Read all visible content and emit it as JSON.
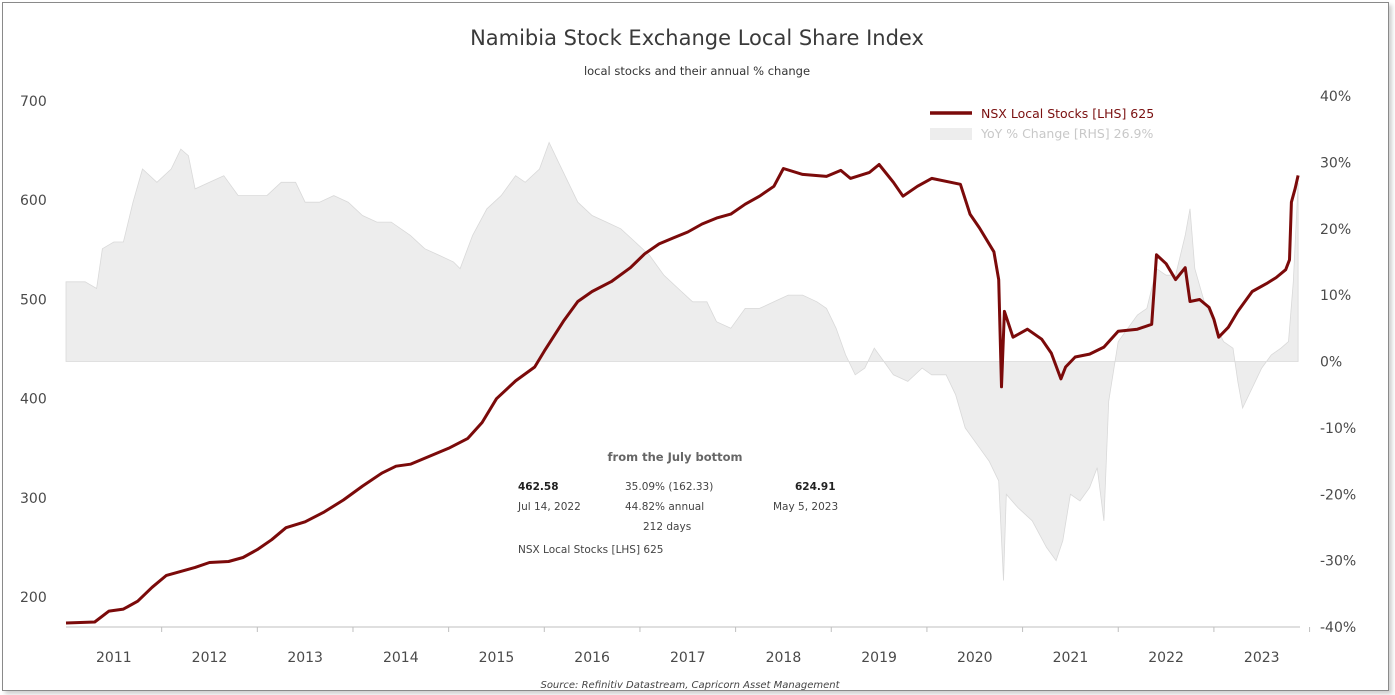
{
  "chart_data": {
    "type": "line",
    "title": "Namibia Stock Exchange Local Share Index",
    "subtitle": "local stocks and their annual % change",
    "source": "Source: Refinitiv Datastream, Capricorn Asset Management",
    "x_labels": [
      "2011",
      "2012",
      "2013",
      "2014",
      "2015",
      "2016",
      "2017",
      "2018",
      "2019",
      "2020",
      "2021",
      "2022",
      "2023"
    ],
    "x_range": [
      2010.5,
      2023.4
    ],
    "y_left": {
      "ticks": [
        200,
        300,
        400,
        500,
        600,
        700
      ],
      "range": [
        170,
        705
      ]
    },
    "y_right": {
      "ticks": [
        "40%",
        "30%",
        "20%",
        "10%",
        "0%",
        "-10%",
        "-20%",
        "-30%",
        "-40%"
      ],
      "values": [
        40,
        30,
        20,
        10,
        0,
        -10,
        -20,
        -30,
        -40
      ],
      "range": [
        -40,
        40
      ]
    },
    "grid": false,
    "legend_position": "top-right",
    "colors": {
      "index": "#7b0a0a",
      "yoy_fill": "#ededed",
      "yoy_line": "#d9d9d9"
    },
    "series": [
      {
        "name": "NSX Local Stocks [LHS] 625",
        "axis": "left",
        "points": [
          [
            2010.5,
            174
          ],
          [
            2010.8,
            175
          ],
          [
            2010.95,
            186
          ],
          [
            2011.1,
            188
          ],
          [
            2011.25,
            196
          ],
          [
            2011.4,
            210
          ],
          [
            2011.55,
            222
          ],
          [
            2011.7,
            226
          ],
          [
            2011.85,
            230
          ],
          [
            2012.0,
            235
          ],
          [
            2012.2,
            236
          ],
          [
            2012.35,
            240
          ],
          [
            2012.5,
            248
          ],
          [
            2012.65,
            258
          ],
          [
            2012.8,
            270
          ],
          [
            2013.0,
            276
          ],
          [
            2013.2,
            286
          ],
          [
            2013.4,
            298
          ],
          [
            2013.6,
            312
          ],
          [
            2013.8,
            325
          ],
          [
            2013.95,
            332
          ],
          [
            2014.1,
            334
          ],
          [
            2014.3,
            342
          ],
          [
            2014.5,
            350
          ],
          [
            2014.7,
            360
          ],
          [
            2014.85,
            376
          ],
          [
            2015.0,
            400
          ],
          [
            2015.2,
            418
          ],
          [
            2015.4,
            432
          ],
          [
            2015.5,
            448
          ],
          [
            2015.7,
            478
          ],
          [
            2015.85,
            498
          ],
          [
            2016.0,
            508
          ],
          [
            2016.2,
            518
          ],
          [
            2016.4,
            532
          ],
          [
            2016.55,
            546
          ],
          [
            2016.7,
            556
          ],
          [
            2016.85,
            562
          ],
          [
            2017.0,
            568
          ],
          [
            2017.15,
            576
          ],
          [
            2017.3,
            582
          ],
          [
            2017.45,
            586
          ],
          [
            2017.6,
            596
          ],
          [
            2017.75,
            604
          ],
          [
            2017.9,
            614
          ],
          [
            2018.0,
            632
          ],
          [
            2018.2,
            626
          ],
          [
            2018.45,
            624
          ],
          [
            2018.6,
            630
          ],
          [
            2018.7,
            622
          ],
          [
            2018.9,
            628
          ],
          [
            2019.0,
            636
          ],
          [
            2019.15,
            618
          ],
          [
            2019.25,
            604
          ],
          [
            2019.4,
            614
          ],
          [
            2019.55,
            622
          ],
          [
            2019.75,
            618
          ],
          [
            2019.85,
            616
          ],
          [
            2019.95,
            586
          ],
          [
            2020.05,
            572
          ],
          [
            2020.2,
            548
          ],
          [
            2020.25,
            520
          ],
          [
            2020.28,
            412
          ],
          [
            2020.31,
            488
          ],
          [
            2020.4,
            462
          ],
          [
            2020.55,
            470
          ],
          [
            2020.7,
            460
          ],
          [
            2020.8,
            446
          ],
          [
            2020.9,
            420
          ],
          [
            2020.95,
            432
          ],
          [
            2021.05,
            442
          ],
          [
            2021.2,
            445
          ],
          [
            2021.35,
            452
          ],
          [
            2021.5,
            468
          ],
          [
            2021.7,
            470
          ],
          [
            2021.85,
            475
          ],
          [
            2021.9,
            545
          ],
          [
            2022.0,
            536
          ],
          [
            2022.1,
            520
          ],
          [
            2022.2,
            532
          ],
          [
            2022.25,
            498
          ],
          [
            2022.35,
            500
          ],
          [
            2022.45,
            492
          ],
          [
            2022.5,
            480
          ],
          [
            2022.55,
            462
          ],
          [
            2022.65,
            472
          ],
          [
            2022.75,
            488
          ],
          [
            2022.9,
            508
          ],
          [
            2023.05,
            516
          ],
          [
            2023.15,
            522
          ],
          [
            2023.25,
            530
          ],
          [
            2023.29,
            540
          ],
          [
            2023.31,
            598
          ],
          [
            2023.35,
            612
          ],
          [
            2023.38,
            625
          ]
        ]
      },
      {
        "name": "YoY % Change [RHS] 26.9%",
        "axis": "right",
        "points": [
          [
            2010.5,
            12
          ],
          [
            2010.7,
            12
          ],
          [
            2010.82,
            11
          ],
          [
            2010.88,
            17
          ],
          [
            2011.0,
            18
          ],
          [
            2011.1,
            18
          ],
          [
            2011.2,
            24
          ],
          [
            2011.3,
            29
          ],
          [
            2011.45,
            27
          ],
          [
            2011.6,
            29
          ],
          [
            2011.7,
            32
          ],
          [
            2011.78,
            31
          ],
          [
            2011.85,
            26
          ],
          [
            2012.0,
            27
          ],
          [
            2012.15,
            28
          ],
          [
            2012.3,
            25
          ],
          [
            2012.45,
            25
          ],
          [
            2012.6,
            25
          ],
          [
            2012.75,
            27
          ],
          [
            2012.9,
            27
          ],
          [
            2013.0,
            24
          ],
          [
            2013.15,
            24
          ],
          [
            2013.3,
            25
          ],
          [
            2013.45,
            24
          ],
          [
            2013.6,
            22
          ],
          [
            2013.75,
            21
          ],
          [
            2013.9,
            21
          ],
          [
            2014.1,
            19
          ],
          [
            2014.25,
            17
          ],
          [
            2014.4,
            16
          ],
          [
            2014.55,
            15
          ],
          [
            2014.62,
            14
          ],
          [
            2014.75,
            19
          ],
          [
            2014.9,
            23
          ],
          [
            2015.05,
            25
          ],
          [
            2015.2,
            28
          ],
          [
            2015.3,
            27
          ],
          [
            2015.45,
            29
          ],
          [
            2015.55,
            33
          ],
          [
            2015.65,
            30
          ],
          [
            2015.75,
            27
          ],
          [
            2015.85,
            24
          ],
          [
            2016.0,
            22
          ],
          [
            2016.15,
            21
          ],
          [
            2016.3,
            20
          ],
          [
            2016.45,
            18
          ],
          [
            2016.6,
            16
          ],
          [
            2016.75,
            13
          ],
          [
            2016.9,
            11
          ],
          [
            2017.05,
            9
          ],
          [
            2017.2,
            9
          ],
          [
            2017.3,
            6
          ],
          [
            2017.45,
            5
          ],
          [
            2017.6,
            8
          ],
          [
            2017.75,
            8
          ],
          [
            2017.9,
            9
          ],
          [
            2018.05,
            10
          ],
          [
            2018.2,
            10
          ],
          [
            2018.35,
            9
          ],
          [
            2018.45,
            8
          ],
          [
            2018.55,
            5
          ],
          [
            2018.65,
            1
          ],
          [
            2018.75,
            -2
          ],
          [
            2018.85,
            -1
          ],
          [
            2018.95,
            2
          ],
          [
            2019.05,
            0
          ],
          [
            2019.15,
            -2
          ],
          [
            2019.3,
            -3
          ],
          [
            2019.45,
            -1
          ],
          [
            2019.55,
            -2
          ],
          [
            2019.7,
            -2
          ],
          [
            2019.8,
            -5
          ],
          [
            2019.9,
            -10
          ],
          [
            2020.05,
            -13
          ],
          [
            2020.15,
            -15
          ],
          [
            2020.25,
            -18
          ],
          [
            2020.3,
            -33
          ],
          [
            2020.33,
            -20
          ],
          [
            2020.45,
            -22
          ],
          [
            2020.6,
            -24
          ],
          [
            2020.75,
            -28
          ],
          [
            2020.85,
            -30
          ],
          [
            2020.92,
            -27
          ],
          [
            2021.0,
            -20
          ],
          [
            2021.1,
            -21
          ],
          [
            2021.2,
            -19
          ],
          [
            2021.28,
            -16
          ],
          [
            2021.35,
            -24
          ],
          [
            2021.4,
            -6
          ],
          [
            2021.5,
            3
          ],
          [
            2021.6,
            5
          ],
          [
            2021.7,
            7
          ],
          [
            2021.8,
            8
          ],
          [
            2021.9,
            14
          ],
          [
            2022.0,
            13
          ],
          [
            2022.1,
            13
          ],
          [
            2022.2,
            19
          ],
          [
            2022.25,
            23
          ],
          [
            2022.3,
            14
          ],
          [
            2022.4,
            9
          ],
          [
            2022.5,
            6
          ],
          [
            2022.6,
            3
          ],
          [
            2022.7,
            2
          ],
          [
            2022.75,
            -3
          ],
          [
            2022.8,
            -7
          ],
          [
            2022.9,
            -4
          ],
          [
            2023.0,
            -1
          ],
          [
            2023.1,
            1
          ],
          [
            2023.2,
            2
          ],
          [
            2023.28,
            3
          ],
          [
            2023.33,
            12
          ],
          [
            2023.38,
            26.9
          ]
        ]
      }
    ],
    "annotation": {
      "heading": "from the July bottom",
      "start_value": "462.58",
      "start_date": "Jul 14, 2022",
      "change": "35.09% (162.33)",
      "annualized": "44.82% annual",
      "days": "212 days",
      "end_value": "624.91",
      "end_date": "May 5, 2023",
      "series_label": "NSX Local Stocks [LHS] 625"
    }
  }
}
